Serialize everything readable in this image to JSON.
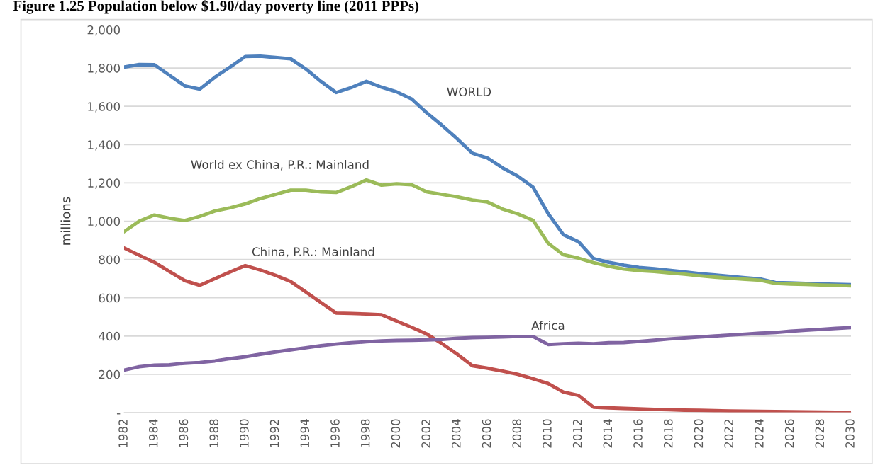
{
  "chart_data": {
    "type": "line",
    "title": "Figure 1.25 Population below $1.90/day poverty line (2011 PPPs)",
    "ylabel": "millions",
    "categories": [
      "1982",
      null,
      "1984",
      null,
      "1986",
      null,
      "1988",
      null,
      "1990",
      null,
      "1992",
      null,
      "1994",
      null,
      "1996",
      null,
      "1998",
      null,
      "2000",
      null,
      "2002",
      null,
      "2004",
      null,
      "2006",
      null,
      "2008",
      null,
      "2010",
      null,
      "2012",
      null,
      "2014",
      null,
      "2016",
      null,
      "2018",
      null,
      "2020",
      null,
      "2022",
      null,
      "2024",
      null,
      "2026",
      null,
      "2028",
      null,
      "2030"
    ],
    "series": [
      {
        "name": "WORLD",
        "color": "#4f81bd",
        "values": [
          1805,
          1818,
          1817,
          1762,
          1707,
          1690,
          1752,
          1805,
          1860,
          1862,
          1855,
          1848,
          1795,
          1730,
          1672,
          1698,
          1730,
          1700,
          1675,
          1638,
          1565,
          1500,
          1430,
          1355,
          1330,
          1278,
          1235,
          1178,
          1040,
          930,
          893,
          805,
          785,
          770,
          758,
          752,
          743,
          735,
          726,
          719,
          712,
          705,
          698,
          680,
          678,
          675,
          672,
          670,
          668
        ]
      },
      {
        "name": "World ex China, P.R.: Mainland",
        "color": "#9bbb59",
        "values": [
          945,
          1000,
          1032,
          1015,
          1003,
          1025,
          1053,
          1070,
          1090,
          1118,
          1140,
          1162,
          1162,
          1153,
          1150,
          1180,
          1215,
          1188,
          1195,
          1190,
          1153,
          1140,
          1127,
          1110,
          1100,
          1063,
          1038,
          1005,
          885,
          825,
          807,
          783,
          765,
          750,
          742,
          737,
          730,
          723,
          715,
          708,
          702,
          697,
          692,
          675,
          672,
          670,
          667,
          665,
          662
        ]
      },
      {
        "name": "China, P.R.: Mainland",
        "color": "#c0504d",
        "values": [
          860,
          822,
          785,
          737,
          690,
          665,
          700,
          735,
          768,
          745,
          717,
          685,
          630,
          575,
          520,
          518,
          515,
          511,
          478,
          445,
          410,
          360,
          305,
          245,
          232,
          217,
          200,
          177,
          152,
          108,
          90,
          28,
          25,
          22,
          20,
          17,
          15,
          13,
          12,
          10,
          9,
          8,
          7,
          6,
          5,
          4,
          3,
          2,
          2
        ]
      },
      {
        "name": "Africa",
        "color": "#8064a2",
        "values": [
          222,
          240,
          248,
          250,
          258,
          262,
          270,
          282,
          292,
          305,
          317,
          328,
          339,
          350,
          358,
          365,
          370,
          375,
          377,
          378,
          380,
          382,
          388,
          392,
          393,
          395,
          398,
          398,
          356,
          360,
          363,
          360,
          365,
          366,
          372,
          378,
          385,
          390,
          395,
          400,
          405,
          410,
          415,
          418,
          425,
          430,
          435,
          440,
          444
        ]
      }
    ],
    "ylim": [
      0,
      2000
    ],
    "yticks": [
      {
        "value": 0,
        "label": "-"
      },
      {
        "value": 200,
        "label": "200"
      },
      {
        "value": 400,
        "label": "400"
      },
      {
        "value": 600,
        "label": "600"
      },
      {
        "value": 800,
        "label": "800"
      },
      {
        "value": 1000,
        "label": "1,000"
      },
      {
        "value": 1200,
        "label": "1,200"
      },
      {
        "value": 1400,
        "label": "1,400"
      },
      {
        "value": 1600,
        "label": "1,600"
      },
      {
        "value": 1800,
        "label": "1,800"
      },
      {
        "value": 2000,
        "label": "2,000"
      }
    ],
    "grid": "y",
    "legend": false
  }
}
